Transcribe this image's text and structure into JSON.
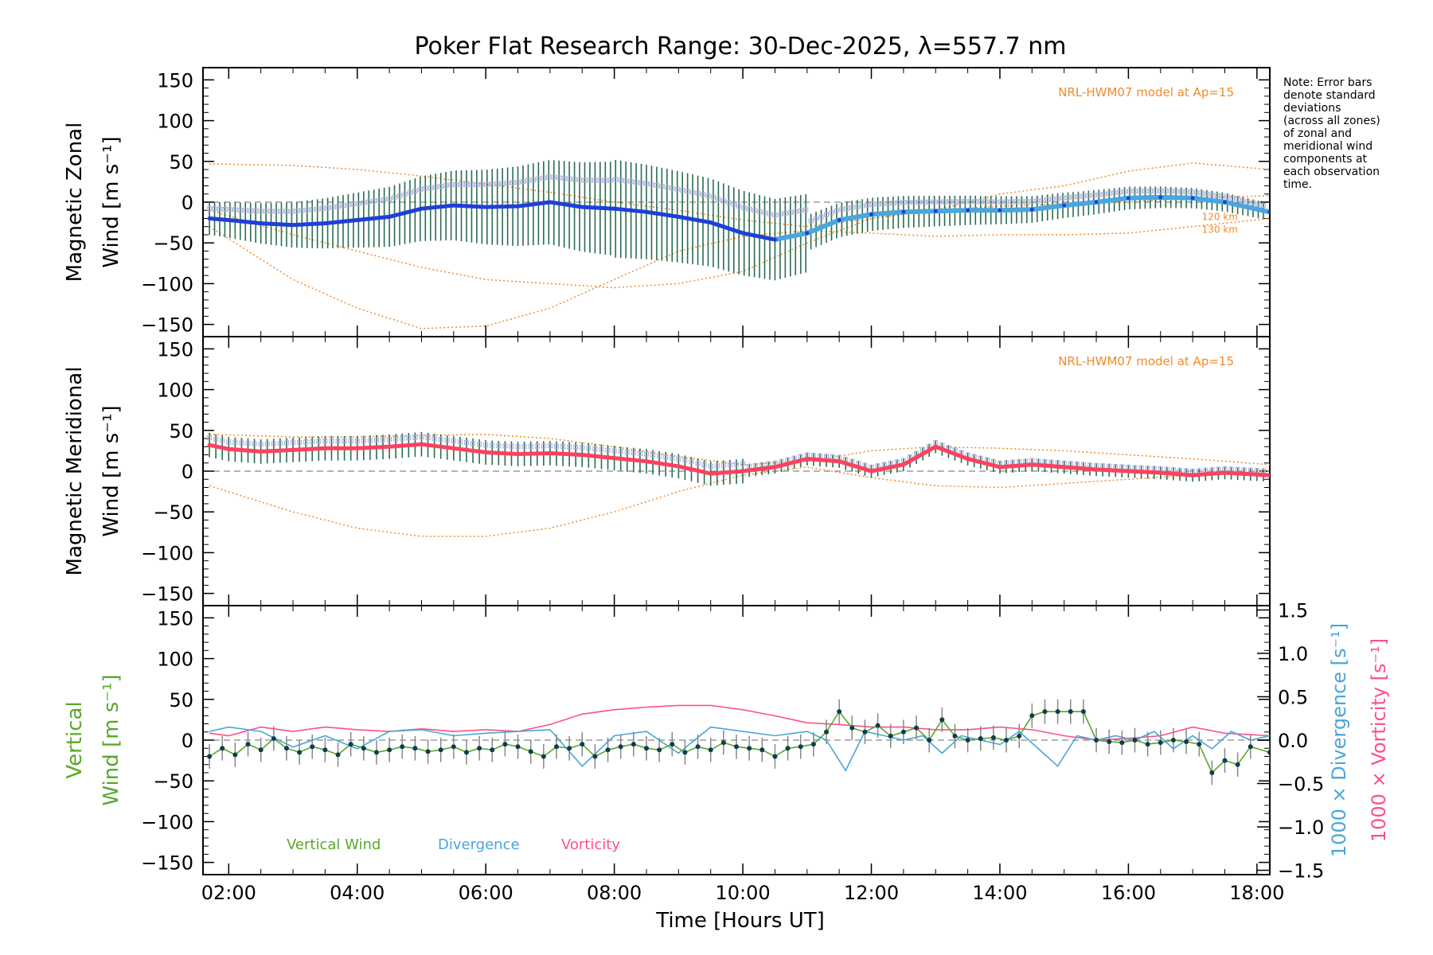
{
  "title": "Poker Flat Research Range: 30-Dec-2025, λ=557.7 nm",
  "note_lines": [
    "Note: Error bars",
    "denote standard",
    "deviations",
    "(across all zones)",
    "of zonal and",
    "meridional wind",
    "components at",
    "each observation",
    "time."
  ],
  "colors": {
    "zonal_line": "#1f3fd9",
    "zonal_line_late": "#4aa6e0",
    "meridional_line": "#ff4060",
    "model": "#f08c2a",
    "scatter": "#aaaadd",
    "vertical": "#5aa82a",
    "divergence": "#4aa6d9",
    "vorticity": "#ff4f86",
    "points": "#0d3d4f",
    "errbar": "#2a6d50"
  },
  "chart_data": [
    {
      "type": "line",
      "panel": "zonal",
      "ylabel_line1": "Magnetic Zonal",
      "ylabel_line2": "Wind [m s⁻¹]",
      "ylim": [
        -165,
        165
      ],
      "yticks": [
        "150",
        "100",
        "50",
        "0",
        "−50",
        "−100",
        "−150"
      ],
      "ytick_values": [
        150,
        100,
        50,
        0,
        -50,
        -100,
        -150
      ],
      "model_label": "NRL-HWM07 model at Ap=15",
      "model_height_labels": [
        "120 km",
        "130 km"
      ],
      "series": [
        {
          "name": "Zonal wind",
          "x": [
            1.7,
            2.0,
            2.5,
            3.0,
            3.5,
            4.0,
            4.5,
            5.0,
            5.5,
            6.0,
            6.5,
            7.0,
            7.5,
            8.0,
            8.5,
            9.0,
            9.5,
            10.0,
            10.5,
            11.0,
            11.5,
            12.0,
            12.5,
            13.0,
            13.5,
            14.0,
            14.5,
            15.0,
            15.5,
            16.0,
            16.5,
            17.0,
            17.5,
            18.2
          ],
          "values": [
            -20,
            -22,
            -26,
            -28,
            -26,
            -22,
            -18,
            -8,
            -4,
            -6,
            -5,
            0,
            -6,
            -8,
            -12,
            -18,
            -25,
            -38,
            -46,
            -38,
            -22,
            -15,
            -12,
            -11,
            -10,
            -10,
            -9,
            -4,
            0,
            5,
            6,
            5,
            0,
            -12
          ]
        },
        {
          "name": "HWM07 120 km",
          "x": [
            1.7,
            3,
            4,
            5,
            6,
            7,
            8,
            9,
            10,
            11,
            12,
            13,
            14,
            15,
            16,
            17,
            18.2
          ],
          "values": [
            47,
            45,
            40,
            32,
            22,
            12,
            0,
            -10,
            -22,
            -30,
            -20,
            -10,
            10,
            20,
            38,
            48,
            40
          ]
        },
        {
          "name": "HWM07 130 km",
          "x": [
            1.7,
            3,
            4,
            5,
            6,
            7,
            8,
            9,
            10,
            11,
            12,
            13,
            14,
            15,
            16,
            17,
            18.2
          ],
          "values": [
            -30,
            -95,
            -130,
            -155,
            -152,
            -130,
            -95,
            -60,
            -42,
            -35,
            -38,
            -42,
            -40,
            -40,
            -38,
            -30,
            -20
          ]
        },
        {
          "name": "HWM07 mid",
          "x": [
            1.7,
            3,
            4,
            5,
            6,
            7,
            8,
            9,
            10,
            11,
            12,
            13,
            14,
            15,
            16,
            17,
            18.2
          ],
          "values": [
            -10,
            -40,
            -60,
            -80,
            -95,
            -100,
            -105,
            -100,
            -85,
            -50,
            -20,
            -10,
            -5,
            -2,
            0,
            5,
            8
          ]
        }
      ]
    },
    {
      "type": "line",
      "panel": "meridional",
      "ylabel_line1": "Magnetic Meridional",
      "ylabel_line2": "Wind [m s⁻¹]",
      "ylim": [
        -165,
        165
      ],
      "yticks": [
        "150",
        "100",
        "50",
        "0",
        "−50",
        "−100",
        "−150"
      ],
      "ytick_values": [
        150,
        100,
        50,
        0,
        -50,
        -100,
        -150
      ],
      "model_label": "NRL-HWM07 model at Ap=15",
      "series": [
        {
          "name": "Meridional wind",
          "x": [
            1.7,
            2.0,
            2.5,
            3.0,
            3.5,
            4.0,
            4.5,
            5.0,
            5.5,
            6.0,
            6.5,
            7.0,
            7.5,
            8.0,
            8.5,
            9.0,
            9.5,
            10.0,
            10.5,
            11.0,
            11.5,
            12.0,
            12.5,
            13.0,
            13.5,
            14.0,
            14.5,
            15.0,
            15.5,
            16.0,
            16.5,
            17.0,
            17.5,
            18.2
          ],
          "values": [
            32,
            27,
            24,
            26,
            28,
            28,
            30,
            33,
            28,
            23,
            21,
            22,
            20,
            16,
            12,
            6,
            -3,
            0,
            5,
            15,
            12,
            0,
            8,
            30,
            15,
            5,
            8,
            5,
            2,
            0,
            -2,
            -5,
            -2,
            -5
          ]
        },
        {
          "name": "HWM07 lower",
          "x": [
            1.7,
            3,
            4,
            5,
            6,
            7,
            8,
            9,
            10,
            11,
            12,
            13,
            14,
            15,
            16,
            17,
            18.2
          ],
          "values": [
            -18,
            -50,
            -70,
            -80,
            -80,
            -70,
            -50,
            -25,
            -5,
            5,
            -8,
            -18,
            -20,
            -15,
            -10,
            -5,
            0
          ]
        },
        {
          "name": "HWM07 upper",
          "x": [
            1.7,
            3,
            4,
            5,
            6,
            7,
            8,
            9,
            10,
            11,
            12,
            13,
            14,
            15,
            16,
            17,
            18.2
          ],
          "values": [
            45,
            42,
            42,
            44,
            45,
            40,
            30,
            18,
            8,
            12,
            25,
            30,
            28,
            25,
            20,
            15,
            8
          ]
        }
      ]
    },
    {
      "type": "line",
      "panel": "vertical",
      "ylabel_line1": "Vertical",
      "ylabel_line2": "Wind [m s⁻¹]",
      "ylim": [
        -165,
        165
      ],
      "yticks": [
        "150",
        "100",
        "50",
        "0",
        "−50",
        "−100",
        "−150"
      ],
      "ytick_values": [
        150,
        100,
        50,
        0,
        -50,
        -100,
        -150
      ],
      "y2ylim": [
        -1.55,
        1.55
      ],
      "y2ticks": [
        "1.5",
        "1.0",
        "0.5",
        "0.0",
        "−0.5",
        "−1.0",
        "−1.5"
      ],
      "y2tick_values": [
        1.5,
        1.0,
        0.5,
        0.0,
        -0.5,
        -1.0,
        -1.5
      ],
      "y2label_div": "1000 × Divergence [s⁻¹]",
      "y2label_vor": "1000 × Vorticity [s⁻¹]",
      "legend": [
        "Vertical Wind",
        "Divergence",
        "Vorticity"
      ],
      "series": [
        {
          "name": "Vertical Wind",
          "x": [
            1.7,
            1.9,
            2.1,
            2.3,
            2.5,
            2.7,
            2.9,
            3.1,
            3.3,
            3.5,
            3.7,
            3.9,
            4.1,
            4.3,
            4.5,
            4.7,
            4.9,
            5.1,
            5.3,
            5.5,
            5.7,
            5.9,
            6.1,
            6.3,
            6.5,
            6.7,
            6.9,
            7.1,
            7.3,
            7.5,
            7.7,
            7.9,
            8.1,
            8.3,
            8.5,
            8.7,
            8.9,
            9.1,
            9.3,
            9.5,
            9.7,
            9.9,
            10.1,
            10.3,
            10.5,
            10.7,
            10.9,
            11.1,
            11.3,
            11.5,
            11.7,
            11.9,
            12.1,
            12.3,
            12.5,
            12.7,
            12.9,
            13.1,
            13.3,
            13.5,
            13.7,
            13.9,
            14.1,
            14.3,
            14.5,
            14.7,
            14.9,
            15.1,
            15.3,
            15.5,
            15.7,
            15.9,
            16.1,
            16.3,
            16.5,
            16.7,
            16.9,
            17.1,
            17.3,
            17.5,
            17.7,
            17.9,
            18.2
          ],
          "values": [
            -20,
            -10,
            -18,
            -5,
            -12,
            2,
            -10,
            -15,
            -8,
            -12,
            -18,
            -5,
            -10,
            -15,
            -12,
            -8,
            -10,
            -14,
            -12,
            -8,
            -15,
            -10,
            -12,
            -5,
            -8,
            -14,
            -20,
            -8,
            -10,
            -5,
            -20,
            -12,
            -8,
            -5,
            -10,
            -12,
            -5,
            -15,
            -8,
            -12,
            -3,
            -8,
            -10,
            -12,
            -20,
            -10,
            -8,
            -5,
            10,
            35,
            15,
            10,
            18,
            5,
            10,
            15,
            0,
            25,
            5,
            0,
            2,
            3,
            0,
            5,
            30,
            35,
            35,
            35,
            35,
            0,
            -2,
            -3,
            0,
            -5,
            -3,
            0,
            -2,
            -5,
            -40,
            -25,
            -30,
            -8,
            -15
          ]
        },
        {
          "name": "Divergence",
          "x": [
            1.7,
            2.0,
            2.5,
            3.0,
            3.5,
            4.0,
            4.5,
            5.0,
            5.5,
            6.0,
            6.5,
            7.0,
            7.5,
            8.0,
            8.5,
            9.0,
            9.5,
            10.0,
            10.5,
            11.0,
            11.3,
            11.6,
            11.9,
            12.2,
            12.5,
            12.8,
            13.1,
            13.4,
            13.7,
            14.0,
            14.3,
            14.6,
            14.9,
            15.2,
            15.5,
            15.8,
            16.1,
            16.4,
            16.7,
            17.0,
            17.3,
            17.6,
            17.9,
            18.2
          ],
          "values": [
            0.1,
            0.15,
            0.1,
            -0.08,
            0.05,
            -0.1,
            0.1,
            0.12,
            0.05,
            0.08,
            0.1,
            0.12,
            -0.3,
            0.05,
            0.1,
            -0.15,
            0.15,
            0.1,
            0.05,
            0.1,
            0.0,
            -0.35,
            0.1,
            0.05,
            0.0,
            0.05,
            -0.15,
            0.05,
            0.0,
            -0.05,
            0.1,
            -0.1,
            -0.3,
            0.05,
            0.0,
            0.05,
            0.0,
            0.1,
            -0.1,
            0.05,
            -0.1,
            0.1,
            0.0,
            0.05
          ]
        },
        {
          "name": "Vorticity",
          "x": [
            1.7,
            2.0,
            2.5,
            3.0,
            3.5,
            4.0,
            4.5,
            5.0,
            5.5,
            6.0,
            6.5,
            7.0,
            7.5,
            8.0,
            8.5,
            9.0,
            9.5,
            10.0,
            10.5,
            11.0,
            11.5,
            12.0,
            12.5,
            13.0,
            13.5,
            14.0,
            14.5,
            15.0,
            15.5,
            16.0,
            16.5,
            17.0,
            17.5,
            18.2
          ],
          "values": [
            0.08,
            0.05,
            0.15,
            0.1,
            0.15,
            0.12,
            0.1,
            0.13,
            0.1,
            0.12,
            0.1,
            0.18,
            0.3,
            0.35,
            0.38,
            0.4,
            0.4,
            0.35,
            0.28,
            0.2,
            0.18,
            0.15,
            0.15,
            0.12,
            0.12,
            0.15,
            0.12,
            0.05,
            0.0,
            0.02,
            0.05,
            0.15,
            0.08,
            0.05
          ]
        }
      ]
    }
  ],
  "xaxis": {
    "label": "Time [Hours UT]",
    "range": [
      1.6,
      18.2
    ],
    "ticks": [
      "02:00",
      "04:00",
      "06:00",
      "08:00",
      "10:00",
      "12:00",
      "14:00",
      "16:00",
      "18:00"
    ],
    "tick_values": [
      2,
      4,
      6,
      8,
      10,
      12,
      14,
      16,
      18
    ]
  }
}
